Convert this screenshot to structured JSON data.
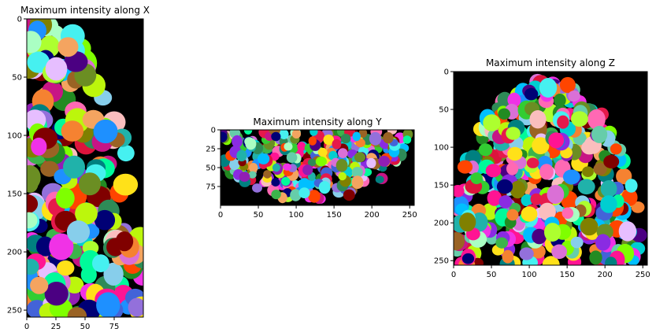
{
  "chart_data": [
    {
      "type": "heatmap",
      "title": "Maximum intensity along X",
      "colormap": "random label colors (segmentation), background black",
      "xlim": [
        0,
        100
      ],
      "ylim": [
        256,
        0
      ],
      "x_ticks": [
        0,
        25,
        50,
        75
      ],
      "y_ticks": [
        0,
        50,
        100,
        150,
        200,
        250
      ],
      "grid": false
    },
    {
      "type": "heatmap",
      "title": "Maximum intensity along Y",
      "colormap": "random label colors (segmentation), background black",
      "xlim": [
        0,
        256
      ],
      "ylim": [
        100,
        0
      ],
      "x_ticks": [
        0,
        50,
        100,
        150,
        200,
        250
      ],
      "y_ticks": [
        0,
        25,
        50,
        75
      ],
      "grid": false
    },
    {
      "type": "heatmap",
      "title": "Maximum intensity along Z",
      "colormap": "random label colors (segmentation), background black",
      "xlim": [
        0,
        256
      ],
      "ylim": [
        256,
        0
      ],
      "x_ticks": [
        0,
        50,
        100,
        150,
        200,
        250
      ],
      "y_ticks": [
        0,
        50,
        100,
        150,
        200,
        250
      ],
      "grid": false
    }
  ],
  "palette": [
    "#e6194b",
    "#3cb44b",
    "#ffe119",
    "#4363d8",
    "#f58231",
    "#911eb4",
    "#46f0f0",
    "#f032e6",
    "#bcf60c",
    "#fabebe",
    "#008080",
    "#e6beff",
    "#9a6324",
    "#800000",
    "#aaffc3",
    "#808000",
    "#000075",
    "#ff69b4",
    "#7fff00",
    "#1e90ff",
    "#ff4500",
    "#00ced1",
    "#adff2f",
    "#9370db",
    "#20b2aa",
    "#dc143c",
    "#00fa9a",
    "#6b8e23",
    "#ff1493",
    "#87ceeb",
    "#2e8b57",
    "#f4a460",
    "#4b0082",
    "#66cdaa",
    "#c71585",
    "#32cd32",
    "#8a2be2",
    "#00bfff",
    "#da70d6",
    "#228b22"
  ]
}
